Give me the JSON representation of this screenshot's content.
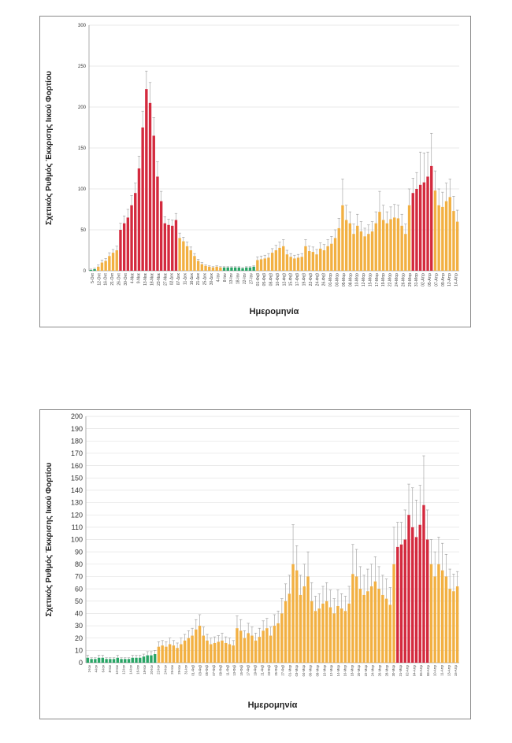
{
  "colors": {
    "green": "#2aa566",
    "orange": "#f2b042",
    "red": "#d42a3e"
  },
  "chart_data": [
    {
      "type": "bar",
      "ylabel": "Σχετικός Ρυθμός Έκκρισης Ιικού Φορτίου",
      "xlabel": "Ημερομηνία",
      "ylim": [
        0,
        300
      ],
      "yticks": [
        0,
        50,
        100,
        150,
        200,
        250,
        300
      ],
      "grid": true,
      "tick_labels": [
        "5-Οκτ",
        "12-Οκτ",
        "16-Οκτ",
        "21-Οκτ",
        "26-Οκτ",
        "30-Οκτ",
        "4-Νοε",
        "9-Νοε",
        "13-Νοε",
        "18-Νοε",
        "23-Νοε",
        "27-Νοε",
        "02-Δεκ",
        "07-Δεκ",
        "11-Δεκ",
        "16-Δεκ",
        "21-Δεκ",
        "25-Δεκ",
        "30-Δεκ",
        "4-Ιαν",
        "8-Ιαν",
        "13-Ιαν",
        "18-Ιαν",
        "22-Ιαν",
        "27-Ιαν",
        "01-Φεβ",
        "05-Φεβ",
        "08-Φεβ",
        "10-Φεβ",
        "12-Φεβ",
        "15-Φεβ",
        "17-Φεβ",
        "19-Φεβ",
        "22-Φεβ",
        "24-Φεβ",
        "26-Φεβ",
        "01-Μαρ",
        "03-Μαρ",
        "05-Μαρ",
        "08-Μαρ",
        "10-Μαρ",
        "12-Μαρ",
        "15-Μαρ",
        "17-Μαρ",
        "19-Μαρ",
        "22-Μαρ",
        "24-Μαρ",
        "26-Μαρ",
        "29-Μαρ",
        "31-Μαρ",
        "02-Απρ",
        "05-Απρ",
        "07-Απρ",
        "09-Απρ",
        "12-Απρ",
        "14-Απρ"
      ],
      "values": [
        1,
        2,
        5,
        10,
        12,
        18,
        22,
        25,
        50,
        58,
        65,
        80,
        95,
        125,
        175,
        222,
        205,
        165,
        115,
        85,
        58,
        56,
        55,
        62,
        40,
        36,
        30,
        25,
        18,
        12,
        8,
        6,
        5,
        4,
        5,
        4,
        4,
        4,
        4,
        4,
        4,
        3,
        4,
        4,
        5,
        13,
        14,
        15,
        16,
        22,
        25,
        28,
        30,
        20,
        17,
        15,
        16,
        17,
        30,
        24,
        23,
        20,
        27,
        25,
        30,
        33,
        40,
        52,
        80,
        62,
        58,
        45,
        55,
        48,
        42,
        45,
        48,
        58,
        72,
        62,
        58,
        63,
        65,
        64,
        55,
        45,
        80,
        95,
        100,
        105,
        108,
        115,
        128,
        98,
        80,
        78,
        85,
        90,
        73,
        60
      ],
      "errors": [
        1,
        1,
        2,
        3,
        3,
        4,
        4,
        5,
        8,
        9,
        10,
        12,
        12,
        15,
        20,
        22,
        25,
        22,
        18,
        12,
        8,
        7,
        7,
        8,
        6,
        5,
        5,
        4,
        3,
        2,
        2,
        1,
        1,
        1,
        1,
        1,
        1,
        1,
        1,
        1,
        1,
        1,
        1,
        1,
        1,
        4,
        4,
        4,
        5,
        5,
        6,
        7,
        8,
        5,
        4,
        4,
        4,
        4,
        8,
        6,
        6,
        6,
        7,
        7,
        8,
        9,
        10,
        12,
        32,
        18,
        14,
        12,
        14,
        12,
        10,
        11,
        12,
        14,
        25,
        18,
        14,
        15,
        16,
        16,
        14,
        12,
        20,
        18,
        20,
        40,
        36,
        30,
        40,
        24,
        20,
        18,
        22,
        22,
        18,
        14
      ],
      "colors": [
        "green",
        "green",
        "orange",
        "orange",
        "orange",
        "orange",
        "orange",
        "orange",
        "red",
        "red",
        "red",
        "red",
        "red",
        "red",
        "red",
        "red",
        "red",
        "red",
        "red",
        "red",
        "red",
        "red",
        "red",
        "red",
        "orange",
        "orange",
        "orange",
        "orange",
        "orange",
        "orange",
        "orange",
        "orange",
        "orange",
        "orange",
        "orange",
        "orange",
        "green",
        "green",
        "green",
        "green",
        "green",
        "green",
        "green",
        "green",
        "green",
        "orange",
        "orange",
        "orange",
        "orange",
        "orange",
        "orange",
        "orange",
        "orange",
        "orange",
        "orange",
        "orange",
        "orange",
        "orange",
        "orange",
        "orange",
        "orange",
        "orange",
        "orange",
        "orange",
        "orange",
        "orange",
        "orange",
        "orange",
        "orange",
        "orange",
        "orange",
        "orange",
        "orange",
        "orange",
        "orange",
        "orange",
        "orange",
        "orange",
        "orange",
        "orange",
        "orange",
        "orange",
        "orange",
        "orange",
        "orange",
        "orange",
        "orange",
        "red",
        "red",
        "red",
        "red",
        "red",
        "red",
        "orange",
        "orange",
        "orange",
        "orange",
        "orange",
        "orange",
        "orange"
      ]
    },
    {
      "type": "bar",
      "ylabel": "Σχετικός Ρυθμός Έκκρισης Ιικού Φορτίου",
      "xlabel": "Ημερομηνία",
      "ylim": [
        0,
        200
      ],
      "yticks": [
        0,
        10,
        20,
        30,
        40,
        50,
        60,
        70,
        80,
        90,
        100,
        110,
        120,
        130,
        140,
        150,
        160,
        170,
        180,
        190,
        200
      ],
      "grid": true,
      "tick_labels": [
        "2-Ιαν",
        "4-Ιαν",
        "6-Ιαν",
        "8-Ιαν",
        "10-Ιαν",
        "12-Ιαν",
        "14-Ιαν",
        "16-Ιαν",
        "18-Ιαν",
        "20-Ιαν",
        "22-Ιαν",
        "24-Ιαν",
        "26-Ιαν",
        "29-Ιαν",
        "31-Ιαν",
        "01-Φεβ",
        "03-Φεβ",
        "05-Φεβ",
        "07-Φεβ",
        "09-Φεβ",
        "11-Φεβ",
        "13-Φεβ",
        "15-Φεβ",
        "17-Φεβ",
        "19-Φεβ",
        "21-Φεβ",
        "23-Φεβ",
        "25-Φεβ",
        "27-Φεβ",
        "01-Μαρ",
        "03-Μαρ",
        "04-Μαρ",
        "06-Μαρ",
        "08-Μαρ",
        "10-Μαρ",
        "12-Μαρ",
        "14-Μαρ",
        "16-Μαρ",
        "18-Μαρ",
        "20-Μαρ",
        "22-Μαρ",
        "24-Μαρ",
        "26-Μαρ",
        "28-Μαρ",
        "30-Μαρ",
        "31-Μαρ",
        "02-Απρ",
        "04-Απρ",
        "06-Απρ",
        "08-Απρ",
        "10-Απρ",
        "11-Απρ",
        "13-Απρ",
        "15-Απρ"
      ],
      "values": [
        4,
        3,
        3,
        4,
        4,
        3,
        3,
        3,
        4,
        3,
        3,
        3,
        4,
        4,
        4,
        5,
        6,
        6,
        7,
        13,
        14,
        13,
        15,
        14,
        12,
        15,
        18,
        20,
        22,
        27,
        30,
        22,
        18,
        15,
        16,
        17,
        18,
        16,
        15,
        14,
        28,
        26,
        20,
        24,
        22,
        18,
        21,
        26,
        28,
        22,
        30,
        32,
        40,
        50,
        56,
        80,
        75,
        55,
        62,
        70,
        50,
        42,
        44,
        48,
        50,
        45,
        40,
        46,
        44,
        42,
        48,
        72,
        70,
        60,
        55,
        58,
        62,
        66,
        60,
        55,
        52,
        47,
        80,
        94,
        96,
        100,
        120,
        110,
        102,
        112,
        128,
        100,
        80,
        70,
        80,
        75,
        70,
        60,
        58,
        62
      ],
      "errors": [
        2,
        1,
        1,
        2,
        2,
        1,
        1,
        1,
        2,
        1,
        1,
        1,
        2,
        2,
        2,
        2,
        3,
        3,
        3,
        4,
        4,
        4,
        5,
        4,
        4,
        5,
        5,
        6,
        6,
        8,
        9,
        7,
        5,
        5,
        5,
        5,
        6,
        5,
        5,
        4,
        10,
        9,
        6,
        8,
        7,
        6,
        7,
        8,
        8,
        7,
        9,
        10,
        12,
        14,
        15,
        32,
        20,
        16,
        18,
        20,
        15,
        12,
        12,
        14,
        15,
        14,
        12,
        13,
        12,
        12,
        14,
        24,
        22,
        18,
        16,
        18,
        18,
        20,
        18,
        16,
        16,
        14,
        30,
        20,
        18,
        24,
        25,
        32,
        30,
        32,
        40,
        24,
        20,
        20,
        22,
        22,
        18,
        16,
        14,
        12
      ],
      "colors": [
        "green",
        "green",
        "green",
        "green",
        "green",
        "green",
        "green",
        "green",
        "green",
        "green",
        "green",
        "green",
        "green",
        "green",
        "green",
        "green",
        "green",
        "green",
        "green",
        "orange",
        "orange",
        "orange",
        "orange",
        "orange",
        "orange",
        "orange",
        "orange",
        "orange",
        "orange",
        "orange",
        "orange",
        "orange",
        "orange",
        "orange",
        "orange",
        "orange",
        "orange",
        "orange",
        "orange",
        "orange",
        "orange",
        "orange",
        "orange",
        "orange",
        "orange",
        "orange",
        "orange",
        "orange",
        "orange",
        "orange",
        "orange",
        "orange",
        "orange",
        "orange",
        "orange",
        "orange",
        "orange",
        "orange",
        "orange",
        "orange",
        "orange",
        "orange",
        "orange",
        "orange",
        "orange",
        "orange",
        "orange",
        "orange",
        "orange",
        "orange",
        "orange",
        "orange",
        "orange",
        "orange",
        "orange",
        "orange",
        "orange",
        "orange",
        "orange",
        "orange",
        "orange",
        "orange",
        "orange",
        "red",
        "red",
        "red",
        "red",
        "red",
        "red",
        "red",
        "red",
        "red",
        "orange",
        "orange",
        "orange",
        "orange",
        "orange",
        "orange",
        "orange",
        "orange"
      ]
    }
  ]
}
